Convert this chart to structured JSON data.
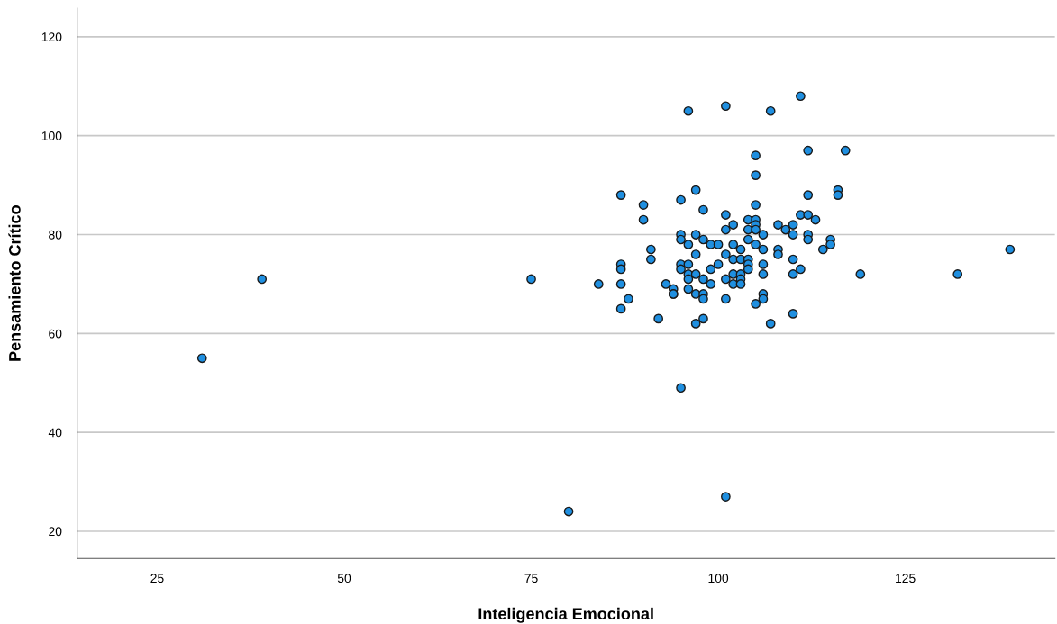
{
  "chart_data": {
    "type": "scatter",
    "xlabel": "Inteligencia Emocional",
    "ylabel": "Pensamiento Crítico",
    "xlim": [
      14.3,
      145
    ],
    "ylim": [
      14.5,
      125.8
    ],
    "xticks": [
      25,
      50,
      75,
      100,
      125
    ],
    "yticks": [
      20,
      40,
      60,
      80,
      100,
      120
    ],
    "grid": "y",
    "marker": "circle",
    "series": [
      {
        "color": "#1f8fe0",
        "x": [
          31,
          39,
          75,
          80,
          101,
          95,
          119,
          132,
          139,
          96,
          101,
          107,
          111,
          105,
          112,
          117,
          105,
          87,
          90,
          95,
          97,
          98,
          101,
          105,
          112,
          116,
          116,
          90,
          111,
          112,
          113,
          104,
          105,
          105,
          102,
          101,
          104,
          105,
          108,
          110,
          109,
          110,
          106,
          104,
          105,
          106,
          108,
          108,
          112,
          112,
          115,
          115,
          114,
          95,
          95,
          97,
          98,
          96,
          99,
          100,
          102,
          103,
          101,
          97,
          91,
          91,
          87,
          87,
          95,
          96,
          95,
          100,
          99,
          102,
          103,
          104,
          104,
          104,
          106,
          106,
          110,
          111,
          110,
          96,
          97,
          96,
          98,
          102,
          103,
          101,
          102,
          103,
          103,
          84,
          87,
          93,
          94,
          94,
          94,
          96,
          99,
          97,
          98,
          98,
          88,
          87,
          101,
          106,
          106,
          105,
          110,
          92,
          98,
          97,
          107
        ],
        "values": [
          55,
          71,
          71,
          24,
          27,
          49,
          72,
          72,
          77,
          105,
          106,
          105,
          108,
          96,
          97,
          97,
          92,
          88,
          86,
          87,
          89,
          85,
          84,
          86,
          88,
          89,
          88,
          83,
          84,
          84,
          83,
          83,
          83,
          82,
          82,
          81,
          81,
          81,
          82,
          82,
          81,
          80,
          80,
          79,
          78,
          77,
          77,
          76,
          80,
          79,
          79,
          78,
          77,
          80,
          79,
          80,
          79,
          78,
          78,
          78,
          78,
          77,
          76,
          76,
          77,
          75,
          74,
          73,
          74,
          74,
          73,
          74,
          73,
          75,
          75,
          75,
          74,
          73,
          74,
          72,
          75,
          73,
          72,
          72,
          72,
          71,
          71,
          72,
          72,
          71,
          70,
          71,
          70,
          70,
          70,
          70,
          69,
          68,
          68,
          69,
          70,
          68,
          68,
          67,
          67,
          65,
          67,
          68,
          67,
          66,
          64,
          63,
          63,
          62,
          62
        ]
      }
    ]
  }
}
